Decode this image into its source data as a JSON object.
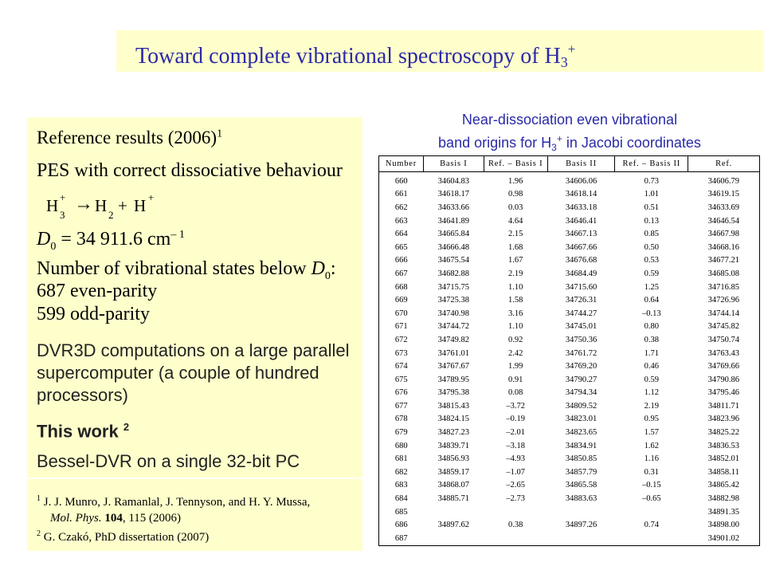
{
  "slide": {
    "title": "Toward complete vibrational spectroscopy of H",
    "title_sub": "3",
    "title_sup": "+"
  },
  "left": {
    "reference_results": "Reference results (2006)",
    "reference_results_sup": "1",
    "pes": "PES with correct dissociative behaviour",
    "reaction": {
      "h": "H",
      "h3_sub": "3",
      "h3_sup": "+",
      "arrow": "→",
      "h2": "H",
      "h2_sub": "2",
      "plus": "+",
      "hplus": "H",
      "hplus_sup": "+"
    },
    "d0": {
      "d": "D",
      "sub": "0",
      "value": "= 34 911.6 cm",
      "exp": "– 1"
    },
    "nvib": "Number of vibrational states below",
    "nvib_d": "D",
    "nvib_sub": "0",
    "nvib_colon": ":",
    "even": "687 even-parity",
    "odd": "599 odd-parity",
    "dvr_line1": "DVR3D computations on a large parallel",
    "dvr_line2": "supercomputer (a couple of hundred",
    "dvr_line3": "processors)",
    "this_work": "This work",
    "this_work_sup": "2",
    "bessel": "Bessel-DVR on a single 32-bit PC"
  },
  "references": {
    "ref1_num": "1",
    "ref1_line1": "J. J. Munro, J. Ramanlal, J. Tennyson, and H. Y. Mussa,",
    "ref1_journal": "Mol. Phys.",
    "ref1_vol": "104",
    "ref1_rest": ", 115 (2006)",
    "ref2_num": "2",
    "ref2_text": "G. Czakó, PhD dissertation (2007)"
  },
  "table_title": {
    "line1": "Near-dissociation even vibrational",
    "line2_a": "band origins for H",
    "line2_sub": "3",
    "line2_sup": "+",
    "line2_b": " in Jacobi coordinates"
  },
  "table": {
    "headers": [
      "Number",
      "Basis I",
      "Ref. – Basis I",
      "Basis II",
      "Ref. – Basis II",
      "Ref."
    ],
    "rows": [
      [
        "660",
        "34604.83",
        "1.96",
        "34606.06",
        "0.73",
        "34606.79"
      ],
      [
        "661",
        "34618.17",
        "0.98",
        "34618.14",
        "1.01",
        "34619.15"
      ],
      [
        "662",
        "34633.66",
        "0.03",
        "34633.18",
        "0.51",
        "34633.69"
      ],
      [
        "663",
        "34641.89",
        "4.64",
        "34646.41",
        "0.13",
        "34646.54"
      ],
      [
        "664",
        "34665.84",
        "2.15",
        "34667.13",
        "0.85",
        "34667.98"
      ],
      [
        "665",
        "34666.48",
        "1.68",
        "34667.66",
        "0.50",
        "34668.16"
      ],
      [
        "666",
        "34675.54",
        "1.67",
        "34676.68",
        "0.53",
        "34677.21"
      ],
      [
        "667",
        "34682.88",
        "2.19",
        "34684.49",
        "0.59",
        "34685.08"
      ],
      [
        "668",
        "34715.75",
        "1.10",
        "34715.60",
        "1.25",
        "34716.85"
      ],
      [
        "669",
        "34725.38",
        "1.58",
        "34726.31",
        "0.64",
        "34726.96"
      ],
      [
        "670",
        "34740.98",
        "3.16",
        "34744.27",
        "–0.13",
        "34744.14"
      ],
      [
        "671",
        "34744.72",
        "1.10",
        "34745.01",
        "0.80",
        "34745.82"
      ],
      [
        "672",
        "34749.82",
        "0.92",
        "34750.36",
        "0.38",
        "34750.74"
      ],
      [
        "673",
        "34761.01",
        "2.42",
        "34761.72",
        "1.71",
        "34763.43"
      ],
      [
        "674",
        "34767.67",
        "1.99",
        "34769.20",
        "0.46",
        "34769.66"
      ],
      [
        "675",
        "34789.95",
        "0.91",
        "34790.27",
        "0.59",
        "34790.86"
      ],
      [
        "676",
        "34795.38",
        "0.08",
        "34794.34",
        "1.12",
        "34795.46"
      ],
      [
        "677",
        "34815.43",
        "–3.72",
        "34809.52",
        "2.19",
        "34811.71"
      ],
      [
        "678",
        "34824.15",
        "–0.19",
        "34823.01",
        "0.95",
        "34823.96"
      ],
      [
        "679",
        "34827.23",
        "–2.01",
        "34823.65",
        "1.57",
        "34825.22"
      ],
      [
        "680",
        "34839.71",
        "–3.18",
        "34834.91",
        "1.62",
        "34836.53"
      ],
      [
        "681",
        "34856.93",
        "–4.93",
        "34850.85",
        "1.16",
        "34852.01"
      ],
      [
        "682",
        "34859.17",
        "–1.07",
        "34857.79",
        "0.31",
        "34858.11"
      ],
      [
        "683",
        "34868.07",
        "–2.65",
        "34865.58",
        "–0.15",
        "34865.42"
      ],
      [
        "684",
        "34885.71",
        "–2.73",
        "34883.63",
        "–0.65",
        "34882.98"
      ],
      [
        "685",
        "",
        "",
        "",
        "",
        "34891.35"
      ],
      [
        "686",
        "34897.62",
        "0.38",
        "34897.26",
        "0.74",
        "34898.00"
      ],
      [
        "687",
        "",
        "",
        "",
        "",
        "34901.02"
      ]
    ]
  }
}
